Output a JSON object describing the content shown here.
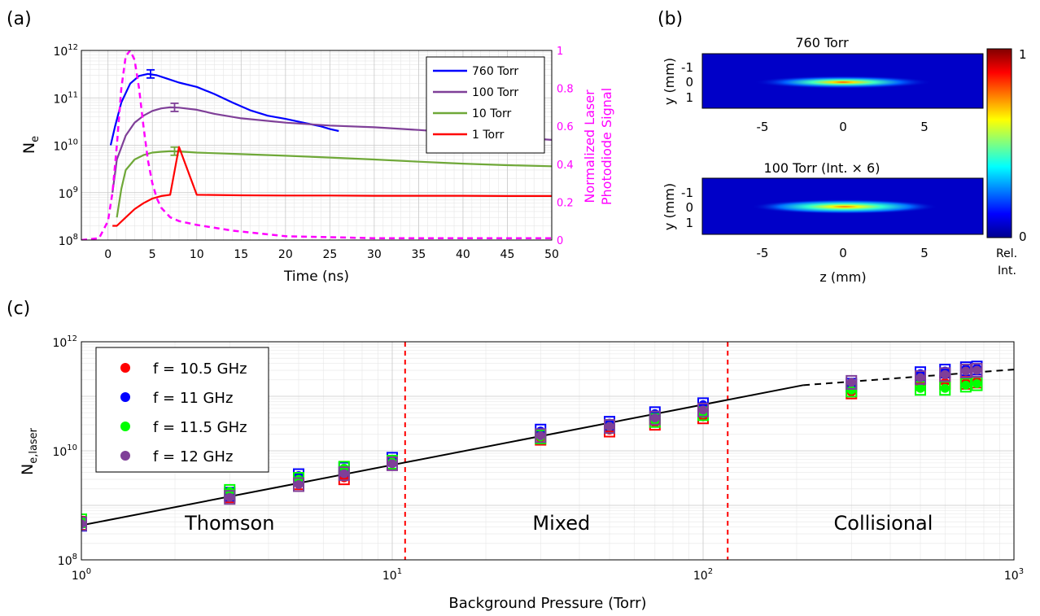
{
  "panel_labels": {
    "a": "(a)",
    "b": "(b)",
    "c": "(c)"
  },
  "chart_data": [
    {
      "type": "line",
      "panel": "(a)",
      "xlabel": "Time (ns)",
      "ylabel_base": "N",
      "ylabel_sub": "e",
      "y2label_line1": "Normalized Laser",
      "y2label_line2": "Photodiode Signal",
      "xlim": [
        -3,
        50
      ],
      "ylim": [
        100000000.0,
        1000000000000.0
      ],
      "yscale": "log",
      "y2lim": [
        0,
        1
      ],
      "xticks": [
        "0",
        "5",
        "10",
        "15",
        "20",
        "25",
        "30",
        "35",
        "40",
        "45",
        "50"
      ],
      "yticks": [
        {
          "base": "10",
          "exp": "8"
        },
        {
          "base": "10",
          "exp": "9"
        },
        {
          "base": "10",
          "exp": "10"
        },
        {
          "base": "10",
          "exp": "11"
        },
        {
          "base": "10",
          "exp": "12"
        }
      ],
      "y2ticks": [
        "0",
        "0.2",
        "0.4",
        "0.6",
        "0.8",
        "1"
      ],
      "grid": true,
      "legend_position": "top-right",
      "series": [
        {
          "name": "760 Torr",
          "color": "#0000ff",
          "x": [
            0.3,
            0.8,
            1.5,
            2.5,
            3.5,
            4.5,
            5.5,
            6.5,
            8,
            10,
            12,
            14,
            16,
            18,
            20,
            22,
            24,
            25,
            26
          ],
          "y": [
            10000000000.0,
            25000000000.0,
            80000000000.0,
            200000000000.0,
            290000000000.0,
            320000000000.0,
            300000000000.0,
            260000000000.0,
            210000000000.0,
            170000000000.0,
            120000000000.0,
            80000000000.0,
            55000000000.0,
            42000000000.0,
            36000000000.0,
            30000000000.0,
            25000000000.0,
            22000000000.0,
            20000000000.0
          ],
          "errorbar": {
            "x": 4.8,
            "y": 320000000000.0
          }
        },
        {
          "name": "100 Torr",
          "color": "#7f3f98",
          "x": [
            0.5,
            1,
            2,
            3,
            4,
            5,
            6,
            7,
            8,
            10,
            12,
            15,
            20,
            25,
            30,
            35,
            40,
            45,
            50
          ],
          "y": [
            1000000000.0,
            5000000000.0,
            16000000000.0,
            30000000000.0,
            42000000000.0,
            53000000000.0,
            60000000000.0,
            63000000000.0,
            62000000000.0,
            56000000000.0,
            46000000000.0,
            37000000000.0,
            30000000000.0,
            26000000000.0,
            24000000000.0,
            21000000000.0,
            18000000000.0,
            15000000000.0,
            13000000000.0
          ],
          "errorbar": {
            "x": 7.5,
            "y": 63000000000.0
          }
        },
        {
          "name": "10 Torr",
          "color": "#6fa838",
          "x": [
            1,
            1.5,
            2,
            3,
            4,
            5,
            6,
            7,
            8,
            10,
            15,
            20,
            25,
            30,
            35,
            40,
            45,
            50
          ],
          "y": [
            300000000.0,
            1200000000.0,
            3000000000.0,
            5000000000.0,
            6200000000.0,
            7000000000.0,
            7300000000.0,
            7500000000.0,
            7400000000.0,
            7000000000.0,
            6500000000.0,
            6000000000.0,
            5500000000.0,
            5000000000.0,
            4500000000.0,
            4100000000.0,
            3800000000.0,
            3600000000.0
          ],
          "errorbar": {
            "x": 7.5,
            "y": 7500000000.0
          }
        },
        {
          "name": "1 Torr",
          "color": "#ff0000",
          "x": [
            0.5,
            1,
            2,
            3,
            4,
            5,
            6,
            7,
            8,
            10,
            15,
            20,
            25,
            30,
            35,
            40,
            45,
            50
          ],
          "y": [
            200000000.0,
            200000000.0,
            300000000.0,
            450000000.0,
            600000000.0,
            750000000.0,
            850000000.0,
            900000000.0,
            9200000000.0,
            900000000.0,
            880000000.0,
            870000000.0,
            870000000.0,
            860000000.0,
            860000000.0,
            860000000.0,
            850000000.0,
            850000000.0
          ]
        },
        {
          "color": "#ff00ff",
          "dashed": true,
          "axis": "right",
          "x": [
            -3,
            -1,
            0,
            0.5,
            1,
            1.5,
            2,
            2.5,
            3,
            3.5,
            4,
            4.5,
            5,
            5.5,
            6,
            7,
            8,
            10,
            14,
            20,
            30,
            40,
            50
          ],
          "y": [
            0,
            0.01,
            0.1,
            0.25,
            0.5,
            0.8,
            0.97,
            1,
            0.95,
            0.8,
            0.6,
            0.42,
            0.3,
            0.22,
            0.17,
            0.12,
            0.1,
            0.08,
            0.05,
            0.02,
            0.01,
            0.01,
            0.01
          ]
        }
      ]
    },
    {
      "type": "heatmap",
      "panel": "(b)",
      "images": [
        {
          "title": "760 Torr"
        },
        {
          "title": "100 Torr (Int. × 6)"
        }
      ],
      "xlabel": "z (mm)",
      "ylabel": "y (mm)",
      "xticks": [
        "-5",
        "0",
        "5"
      ],
      "yticks": [
        "-1",
        "0",
        "1"
      ],
      "colorbar": {
        "max": "1",
        "min": "0",
        "label_line1": "Rel.",
        "label_line2": "Int.",
        "colormap": "jet"
      }
    },
    {
      "type": "scatter",
      "panel": "(c)",
      "xlabel": "Background Pressure (Torr)",
      "ylabel_base": "N",
      "ylabel_sub": "e,laser",
      "xscale": "log",
      "yscale": "log",
      "xlim": [
        1,
        1000
      ],
      "ylim": [
        100000000.0,
        1000000000000.0
      ],
      "xticks": [
        {
          "base": "10",
          "exp": "0"
        },
        {
          "base": "10",
          "exp": "1"
        },
        {
          "base": "10",
          "exp": "2"
        },
        {
          "base": "10",
          "exp": "3"
        }
      ],
      "yticks": [
        {
          "base": "10",
          "exp": "8"
        },
        {
          "base": "10",
          "exp": "10"
        },
        {
          "base": "10",
          "exp": "12"
        }
      ],
      "grid": true,
      "legend_position": "top-left",
      "regions": [
        {
          "label": "Thomson",
          "x": 3
        },
        {
          "label": "Mixed",
          "x": 35
        },
        {
          "label": "Collisional",
          "x": 380
        }
      ],
      "boundaries": [
        11,
        120
      ],
      "fit_line": {
        "solid": [
          [
            1,
            430000000.0
          ],
          [
            210,
            160000000000.0
          ]
        ],
        "dashed": [
          [
            210,
            160000000000.0
          ],
          [
            1000,
            310000000000.0
          ]
        ]
      },
      "series": [
        {
          "name": "f = 10.5 GHz",
          "color": "#ff0000",
          "x": [
            1,
            3,
            5,
            7,
            10,
            30,
            50,
            70,
            100,
            300,
            500,
            600,
            700,
            760
          ],
          "y": [
            470000000.0,
            1500000000.0,
            2600000000.0,
            3200000000.0,
            6000000000.0,
            17000000000.0,
            24000000000.0,
            32000000000.0,
            42000000000.0,
            120000000000.0,
            170000000000.0,
            180000000000.0,
            180000000000.0,
            190000000000.0
          ]
        },
        {
          "name": "f = 11 GHz",
          "color": "#0000ff",
          "x": [
            1,
            3,
            5,
            7,
            10,
            30,
            50,
            70,
            100,
            300,
            500,
            600,
            700,
            760
          ],
          "y": [
            450000000.0,
            1600000000.0,
            3500000000.0,
            4600000000.0,
            7000000000.0,
            23000000000.0,
            32000000000.0,
            48000000000.0,
            70000000000.0,
            160000000000.0,
            260000000000.0,
            290000000000.0,
            320000000000.0,
            330000000000.0
          ]
        },
        {
          "name": "f = 11.5 GHz",
          "color": "#00ff00",
          "x": [
            1,
            3,
            5,
            7,
            10,
            30,
            50,
            70,
            100,
            300,
            500,
            600,
            700,
            760
          ],
          "y": [
            520000000.0,
            1800000000.0,
            3000000000.0,
            4800000000.0,
            6200000000.0,
            18000000000.0,
            28000000000.0,
            36000000000.0,
            48000000000.0,
            130000000000.0,
            140000000000.0,
            140000000000.0,
            160000000000.0,
            170000000000.0
          ]
        },
        {
          "name": "f = 12 GHz",
          "color": "#7f3f98",
          "x": [
            1,
            3,
            5,
            7,
            10,
            30,
            50,
            70,
            100,
            300,
            500,
            600,
            700,
            760
          ],
          "y": [
            460000000.0,
            1400000000.0,
            2400000000.0,
            3800000000.0,
            5800000000.0,
            19000000000.0,
            28000000000.0,
            40000000000.0,
            56000000000.0,
            180000000000.0,
            220000000000.0,
            250000000000.0,
            290000000000.0,
            300000000000.0
          ]
        }
      ]
    }
  ]
}
